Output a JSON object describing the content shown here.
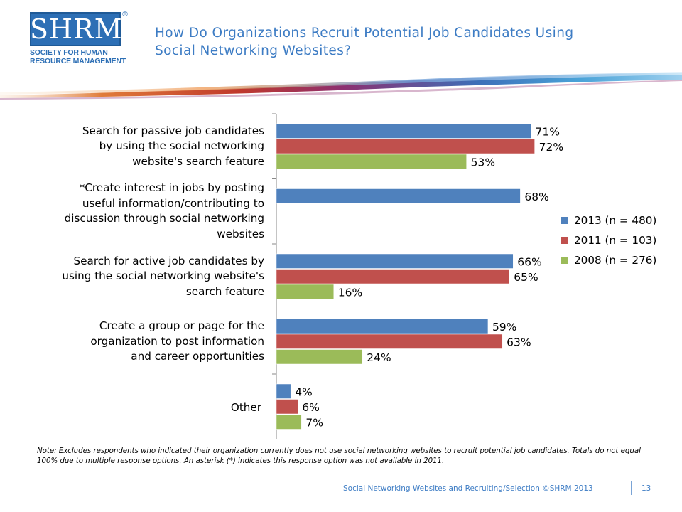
{
  "logo": {
    "letters": "SHRM",
    "registered": "®",
    "subtitle": [
      "SOCIETY FOR HUMAN",
      "RESOURCE MANAGEMENT"
    ]
  },
  "title": [
    "How Do Organizations Recruit Potential Job Candidates Using",
    "Social Networking Websites?"
  ],
  "colors": {
    "accent": "#3d7cc4",
    "series_2013": "#4f81bd",
    "series_2011": "#c0504d",
    "series_2008": "#9bbb59"
  },
  "chart_data": {
    "type": "bar",
    "orientation": "horizontal",
    "categories": [
      [
        "Search for passive job candidates",
        "by using the social networking",
        "website's search feature"
      ],
      [
        "*Create interest in jobs by posting",
        "useful information/contributing to",
        "discussion through social networking",
        "websites"
      ],
      [
        "Search for active job candidates by",
        "using the social networking website's",
        "search feature"
      ],
      [
        "Create a group or page for the",
        "organization to post information",
        "and career opportunities"
      ],
      [
        "Other"
      ]
    ],
    "series": [
      {
        "name": "2013 (n = 480)",
        "values": [
          71,
          68,
          66,
          59,
          4
        ],
        "labels": [
          "71%",
          "68%",
          "66%",
          "59%",
          "4%"
        ]
      },
      {
        "name": "2011 (n = 103)",
        "values": [
          72,
          null,
          65,
          63,
          6
        ],
        "labels": [
          "72%",
          "",
          "65%",
          "63%",
          "6%"
        ]
      },
      {
        "name": "2008 (n = 276)",
        "values": [
          53,
          null,
          16,
          24,
          7
        ],
        "labels": [
          "53%",
          "",
          "16%",
          "24%",
          "7%"
        ]
      }
    ],
    "xlim": [
      0,
      100
    ],
    "legend_position": "right",
    "grid": false
  },
  "note": "Note: Excludes respondents who indicated their organization currently does not use social networking websites to recruit potential job candidates. Totals do not equal 100% due to multiple response options. An asterisk (*) indicates this response option was not available in 2011.",
  "footer": "Social Networking Websites and Recruiting/Selection ©SHRM 2013",
  "page_number": "13"
}
